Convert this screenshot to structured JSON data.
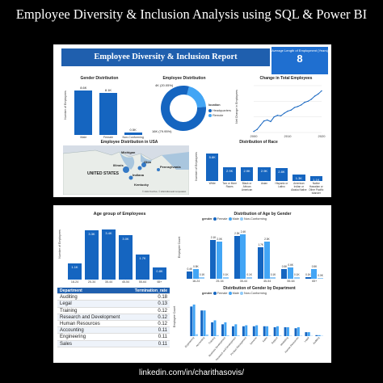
{
  "page_title": "Employee Diversity & Inclusion Analysis using SQL & Power BI",
  "footer": "linkedin.com/in/charithasovis/",
  "colors": {
    "primary": "#1565c0",
    "banner": "#1f5fae",
    "light": "#42a5f5",
    "pale": "#90caf9",
    "background": "#000000"
  },
  "report": {
    "title": "Employee Diversity & Inclusion Report",
    "kpi_label": "Average Length of Employment (Years)",
    "kpi_value": "8"
  },
  "gender_distribution": {
    "title": "Gender Distribution",
    "ylabel": "Number of Employees",
    "categories": [
      "Male",
      "Female",
      "Non-Conforming"
    ],
    "labels": [
      "8.6K",
      "8.1K",
      "0.5K"
    ],
    "values": [
      8.6,
      8.1,
      0.5
    ]
  },
  "employee_distribution": {
    "title": "Employee Distribution",
    "slices": [
      {
        "label": "4K (20.05%)",
        "value": 20.05,
        "color": "#42a5f5"
      },
      {
        "label": "16K (79.95%)",
        "value": 79.95,
        "color": "#1565c0"
      }
    ],
    "legend_title": "location",
    "legend": [
      {
        "name": "Headquarters",
        "color": "#1565c0"
      },
      {
        "name": "Remote",
        "color": "#42a5f5"
      }
    ]
  },
  "chart_data": {
    "type": "line",
    "title": "Change in Total Employees",
    "ylabel": "Net Change in Employees",
    "xticks": [
      "2000",
      "2010",
      "2020"
    ],
    "x": [
      2000,
      2001,
      2002,
      2003,
      2004,
      2005,
      2006,
      2007,
      2008,
      2009,
      2010,
      2011,
      2012,
      2013,
      2014,
      2015,
      2016,
      2017,
      2018,
      2019,
      2020
    ],
    "values": [
      2,
      6,
      14,
      22,
      24,
      21,
      30,
      33,
      32,
      37,
      41,
      43,
      48,
      50,
      53,
      58,
      60,
      64,
      70,
      74,
      80
    ],
    "ylim": [
      0,
      90
    ]
  },
  "map": {
    "title": "Employee Distribution in USA",
    "labels": [
      "Michigan",
      "Ohio",
      "Illinois",
      "UNITED STATES",
      "Indiana",
      "Kentucky",
      "Pennsylvania"
    ],
    "attribution": "© 2024 TomTom, © 2024 Microsoft Corporation"
  },
  "race_distribution": {
    "title": "Distribution of Race",
    "ylabel": "Number of Employees",
    "categories": [
      "White",
      "Two or More Races",
      "Black or African American",
      "Asian",
      "Hispanic or Latino",
      "American Indian or Alaska Native",
      "Native Hawaiian or Other Pacific Islander"
    ],
    "labels": [
      "5.8K",
      "2.9K",
      "2.9K",
      "2.9K",
      "2.8K",
      "1.3K",
      "1.1K"
    ],
    "values": [
      5.8,
      2.9,
      2.9,
      2.9,
      2.8,
      1.3,
      1.1
    ]
  },
  "age_group": {
    "title": "Age group of Employees",
    "ylabel": "Number of Employees",
    "categories": [
      "18-24",
      "25-34",
      "35-44",
      "45-54",
      "55-64",
      "65+"
    ],
    "labels": [
      "1.1K",
      "3.3K",
      "3.4K",
      "3.0K",
      "1.7K",
      "0.8K"
    ],
    "values": [
      1.1,
      3.3,
      3.4,
      3.0,
      1.7,
      0.8
    ]
  },
  "termination_table": {
    "headers": [
      "Department",
      "Termination_rate"
    ],
    "rows": [
      [
        "Auditing",
        "0.18"
      ],
      [
        "Legal",
        "0.13"
      ],
      [
        "Training",
        "0.12"
      ],
      [
        "Research and Development",
        "0.12"
      ],
      [
        "Human Resources",
        "0.12"
      ],
      [
        "Accounting",
        "0.11"
      ],
      [
        "Engineering",
        "0.11"
      ],
      [
        "Sales",
        "0.11"
      ]
    ]
  },
  "age_by_gender": {
    "title": "Distribution of Age by Gender",
    "legend_title": "gender",
    "legend": [
      {
        "name": "Female",
        "color": "#1565c0"
      },
      {
        "name": "Male",
        "color": "#42a5f5"
      },
      {
        "name": "Non-Conforming",
        "color": "#90caf9"
      }
    ],
    "ylabel": "Employee Count",
    "categories": [
      "18-24",
      "25-34",
      "35-44",
      "45-54",
      "55-64",
      "65+"
    ],
    "series": [
      {
        "name": "Female",
        "labels": [
          "0.4K",
          "2.1K",
          "2.3K",
          "1.7K",
          "0.5K",
          "0.1K"
        ],
        "values": [
          0.4,
          2.1,
          2.3,
          1.7,
          0.5,
          0.1
        ]
      },
      {
        "name": "Male",
        "labels": [
          "0.5K",
          "2.0K",
          "2.4K",
          "2.0K",
          "0.6K",
          "0.5K"
        ],
        "values": [
          0.5,
          2.0,
          2.4,
          2.0,
          0.6,
          0.5
        ]
      },
      {
        "name": "Non-Conforming",
        "labels": [
          "0.1K",
          "0.1K",
          "0.1K",
          "0.1K",
          "0.1K",
          "0.0K"
        ],
        "values": [
          0.1,
          0.1,
          0.1,
          0.1,
          0.1,
          0.05
        ]
      }
    ]
  },
  "gender_by_department": {
    "title": "Distribution of Gender by Department",
    "legend_title": "gender",
    "legend": [
      {
        "name": "Female",
        "color": "#1565c0"
      },
      {
        "name": "Male",
        "color": "#42a5f5"
      },
      {
        "name": "Non-Conforming",
        "color": "#90caf9"
      }
    ],
    "ylabel": "Employee Count",
    "categories": [
      "Engineering",
      "Accounting",
      "Training",
      "Business Development",
      "Research and Development",
      "Product Management",
      "Services",
      "Sales",
      "Support",
      "Marketing",
      "Human Resources",
      "Legal",
      "Auditing"
    ],
    "female": [
      1.5,
      1.3,
      0.7,
      0.6,
      0.5,
      0.5,
      0.5,
      0.5,
      0.45,
      0.45,
      0.4,
      0.2,
      0.05
    ],
    "male": [
      1.6,
      1.3,
      0.8,
      0.7,
      0.6,
      0.55,
      0.55,
      0.5,
      0.5,
      0.45,
      0.45,
      0.2,
      0.05
    ],
    "nonconf": [
      0.1,
      0.08,
      0.05,
      0.04,
      0.04,
      0.03,
      0.03,
      0.03,
      0.03,
      0.02,
      0.02,
      0.01,
      0.0
    ],
    "ymax": 1.8
  }
}
